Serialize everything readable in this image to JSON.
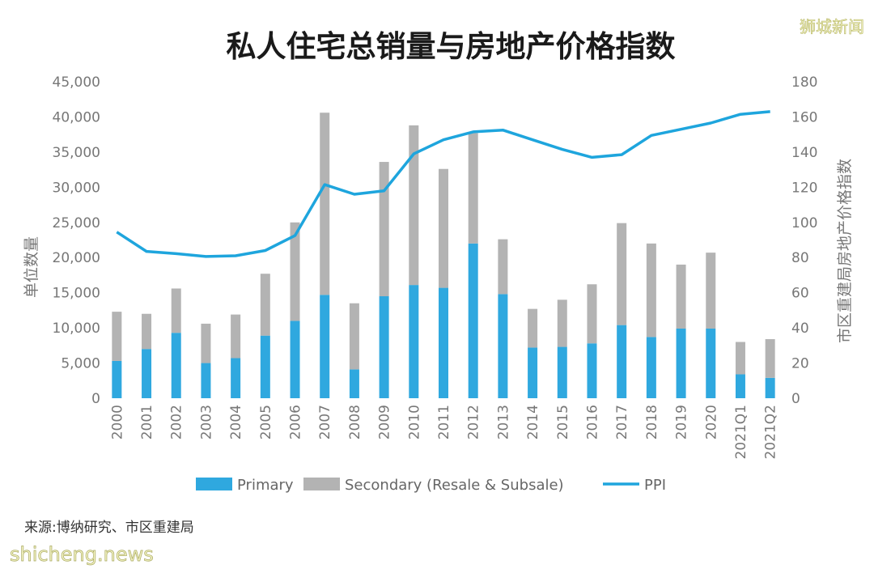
{
  "chart_data": {
    "type": "bar",
    "stacked": true,
    "title": "私人住宅总销量与房地产价格指数",
    "ylabel": "单位数量",
    "y2label": "市区重建局房地产价格指数",
    "ylim": [
      0,
      45000
    ],
    "y2lim": [
      0,
      180
    ],
    "yticks": [
      "0",
      "5,000",
      "10,000",
      "15,000",
      "20,000",
      "25,000",
      "30,000",
      "35,000",
      "40,000",
      "45,000"
    ],
    "y2ticks": [
      "0",
      "20",
      "40",
      "60",
      "80",
      "100",
      "120",
      "140",
      "160",
      "180"
    ],
    "categories": [
      "2000",
      "2001",
      "2002",
      "2003",
      "2004",
      "2005",
      "2006",
      "2007",
      "2008",
      "2009",
      "2010",
      "2011",
      "2012",
      "2013",
      "2014",
      "2015",
      "2016",
      "2017",
      "2018",
      "2019",
      "2020",
      "2021Q1",
      "2021Q2"
    ],
    "series": [
      {
        "name": "Primary",
        "kind": "bar",
        "axis": "left",
        "color": "#2fa8df",
        "values": [
          5300,
          7000,
          9300,
          5000,
          5700,
          8900,
          11000,
          14700,
          4100,
          14500,
          16100,
          15700,
          22000,
          14800,
          7200,
          7300,
          7800,
          10400,
          8700,
          9900,
          9900,
          3400,
          2900
        ]
      },
      {
        "name": "Secondary (Resale & Subsale)",
        "kind": "bar",
        "axis": "left",
        "color": "#b3b3b3",
        "values": [
          7000,
          5000,
          6300,
          5600,
          6200,
          8800,
          14000,
          25900,
          9400,
          19100,
          22700,
          16900,
          15700,
          7800,
          5500,
          6700,
          8400,
          14500,
          13300,
          9100,
          10800,
          4600,
          5500
        ]
      },
      {
        "name": "PPI",
        "kind": "line",
        "axis": "right",
        "color": "#1ea5dd",
        "values": [
          94.5,
          83.5,
          82.2,
          80.6,
          81,
          84,
          92.5,
          121.5,
          116,
          118,
          139,
          147,
          151.5,
          152.5,
          147,
          141.5,
          137,
          138.5,
          149.5,
          153,
          156.5,
          161.5,
          163
        ]
      }
    ],
    "legend": {
      "position": "bottom"
    },
    "grid": false
  },
  "source_text": "来源:博纳研究、市区重建局",
  "watermark_top": "狮城新闻",
  "watermark_bottom": "shicheng.news"
}
